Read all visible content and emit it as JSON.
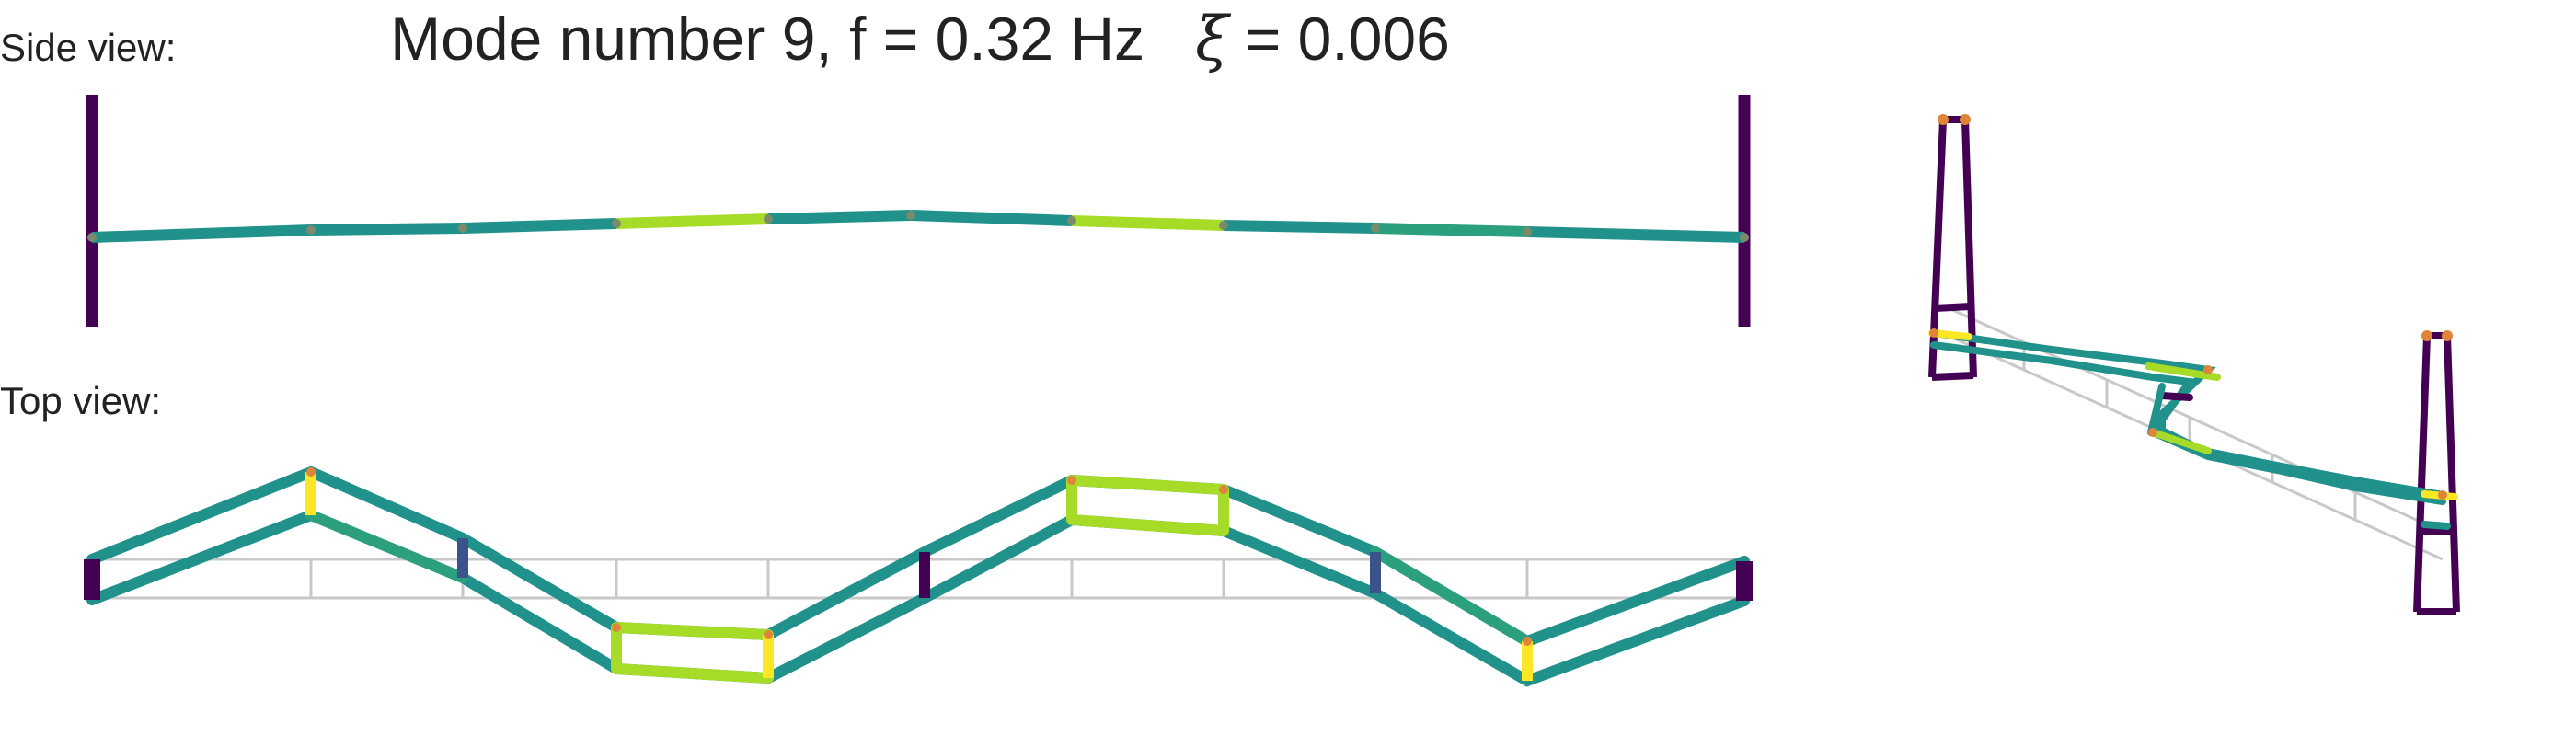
{
  "panel_labels": {
    "side": "Side view:",
    "top": "Top view:"
  },
  "title": {
    "prefix": "Mode number 9, f = 0.32 Hz",
    "xi_symbol": "ξ",
    "xi_rest": " = 0.006"
  },
  "colors": {
    "tower": "#440154",
    "deck_teal": "#21918c",
    "deck_green": "#2ca07e",
    "deck_lime": "#a6db27",
    "deck_yellow": "#fde725",
    "node": "#e0843a",
    "undeformed": "#c8c8c8"
  }
}
